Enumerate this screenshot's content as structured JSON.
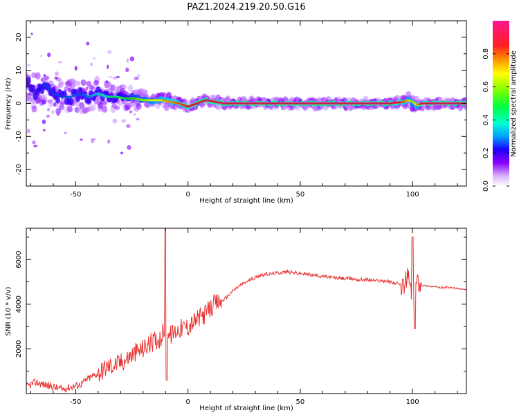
{
  "title": "PAZ1.2024.219.20.50.G16",
  "chart_data": [
    {
      "type": "heatmap",
      "xlabel": "Height of straight line (km)",
      "ylabel": "Frequency (Hz)",
      "xlim": [
        -72,
        124
      ],
      "ylim": [
        -25,
        25
      ],
      "xticks": [
        -50,
        0,
        50,
        100
      ],
      "yticks": [
        -20,
        -10,
        0,
        10,
        20
      ],
      "colorbar": {
        "label": "Normalized spectral amplitude",
        "range": [
          0,
          1
        ],
        "ticks": [
          "0.0",
          "0.2",
          "0.4",
          "0.6",
          "0.8"
        ],
        "tick_values": [
          0,
          0.2,
          0.4,
          0.6,
          0.8
        ]
      },
      "ridge": {
        "x": [
          -72,
          -68,
          -64,
          -60,
          -56,
          -52,
          -48,
          -44,
          -40,
          -36,
          -32,
          -28,
          -24,
          -20,
          -16,
          -12,
          -8,
          -4,
          0,
          4,
          8,
          12,
          16,
          20,
          30,
          40,
          50,
          60,
          70,
          80,
          90,
          96,
          98,
          100,
          102,
          104,
          110,
          124
        ],
        "y": [
          7,
          3,
          6,
          3,
          2,
          2,
          3,
          2,
          3,
          2,
          2,
          1.5,
          1.5,
          1,
          1,
          1,
          0.5,
          0,
          -1,
          0,
          1,
          0.5,
          0,
          0,
          0,
          0,
          0,
          0,
          0,
          0,
          0,
          0.5,
          1,
          0.5,
          -0.5,
          0,
          0,
          0
        ],
        "amplitude": [
          0.15,
          0.2,
          0.25,
          0.25,
          0.25,
          0.28,
          0.25,
          0.3,
          0.35,
          0.4,
          0.45,
          0.5,
          0.55,
          0.6,
          0.65,
          0.7,
          0.75,
          0.8,
          0.85,
          0.88,
          0.9,
          0.92,
          0.95,
          0.95,
          0.95,
          0.95,
          0.95,
          0.95,
          0.95,
          0.95,
          0.95,
          0.8,
          0.7,
          0.6,
          0.7,
          0.9,
          0.95,
          0.95
        ]
      }
    },
    {
      "type": "line",
      "xlabel": "Height of straight line (km)",
      "ylabel": "SNR (10 * v/v)",
      "xlim": [
        -72,
        124
      ],
      "ylim": [
        0,
        7400
      ],
      "xticks": [
        -50,
        0,
        50,
        100
      ],
      "yticks": [
        2000,
        4000,
        6000
      ],
      "color": "#e8312f",
      "x": [
        -72,
        -68,
        -64,
        -60,
        -56,
        -52,
        -48,
        -44,
        -40,
        -36,
        -32,
        -28,
        -24,
        -20,
        -16,
        -12,
        -10,
        -8,
        -4,
        0,
        4,
        8,
        12,
        16,
        20,
        24,
        28,
        32,
        36,
        40,
        44,
        48,
        52,
        56,
        60,
        64,
        68,
        72,
        76,
        80,
        84,
        88,
        92,
        96,
        98,
        100,
        102,
        104,
        108,
        112,
        116,
        120,
        124
      ],
      "y": [
        300,
        500,
        400,
        300,
        200,
        300,
        400,
        700,
        900,
        1200,
        1300,
        1500,
        1800,
        2000,
        2300,
        2500,
        3000,
        2600,
        2900,
        3000,
        3300,
        3600,
        4000,
        4200,
        4600,
        4900,
        5100,
        5300,
        5350,
        5400,
        5450,
        5400,
        5350,
        5300,
        5250,
        5200,
        5150,
        5150,
        5100,
        5100,
        5050,
        5050,
        4950,
        4800,
        5300,
        4300,
        5100,
        4850,
        4800,
        4750,
        4750,
        4700,
        4650
      ]
    }
  ]
}
